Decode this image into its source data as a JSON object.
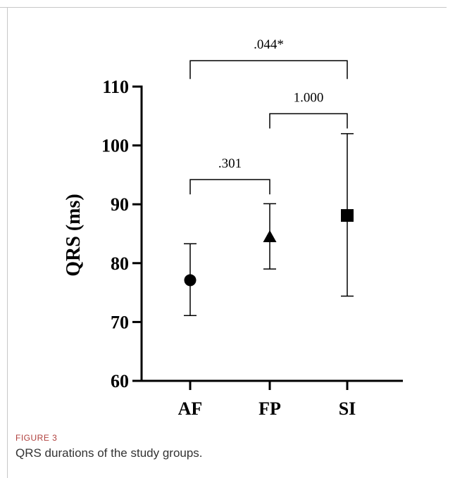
{
  "figure": {
    "label": "FIGURE 3",
    "caption": "QRS durations of the study groups."
  },
  "chart_data": {
    "type": "scatter",
    "ylabel": "QRS (ms)",
    "ylim": [
      60,
      110
    ],
    "yticks": [
      60,
      70,
      80,
      90,
      100,
      110
    ],
    "categories": [
      "AF",
      "FP",
      "SI"
    ],
    "points": [
      {
        "category": "AF",
        "mean": 77.1,
        "lower": 71.1,
        "upper": 83.3,
        "marker": "circle"
      },
      {
        "category": "FP",
        "mean": 84.4,
        "lower": 79.0,
        "upper": 90.1,
        "marker": "triangle"
      },
      {
        "category": "SI",
        "mean": 88.1,
        "lower": 74.4,
        "upper": 102.0,
        "marker": "square"
      }
    ],
    "comparisons": [
      {
        "from": "AF",
        "to": "FP",
        "label": ".301",
        "y": 94.2
      },
      {
        "from": "FP",
        "to": "SI",
        "label": "1.000",
        "y": 105.4
      },
      {
        "from": "AF",
        "to": "SI",
        "label": ".044*",
        "y": 114.4
      }
    ],
    "grid": false,
    "colors": {
      "marker": "#000000",
      "axis": "#000000"
    }
  }
}
